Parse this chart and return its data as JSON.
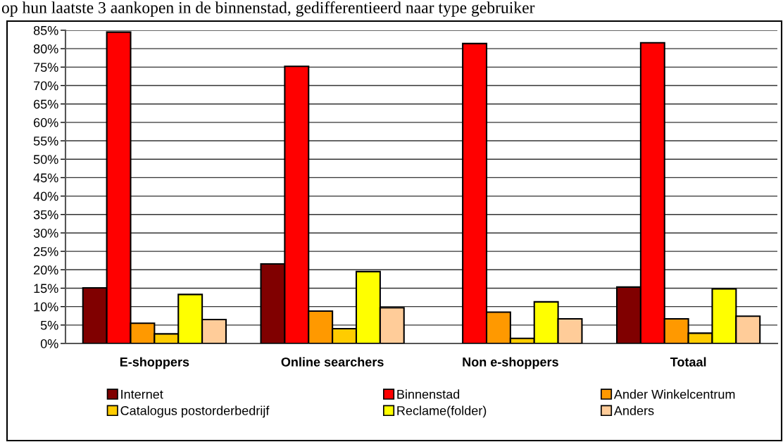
{
  "chart_data": {
    "type": "bar",
    "title": "op hun laatste 3 aankopen in de binnenstad, gedifferentieerd naar type gebruiker",
    "categories": [
      "E-shoppers",
      "Online searchers",
      "Non e-shoppers",
      "Totaal"
    ],
    "series": [
      {
        "name": "Internet",
        "color": "#800000",
        "values": [
          15.1,
          21.6,
          null,
          15.3
        ]
      },
      {
        "name": "Binnenstad",
        "color": "#ff0000",
        "values": [
          84.5,
          75.2,
          81.4,
          81.6
        ]
      },
      {
        "name": "Ander Winkelcentrum",
        "color": "#ff9900",
        "values": [
          5.5,
          8.8,
          8.5,
          6.7
        ]
      },
      {
        "name": "Catalogus postorderbedrijf",
        "color": "#ffcc00",
        "values": [
          2.6,
          4.0,
          1.4,
          2.8
        ]
      },
      {
        "name": "Reclame(folder)",
        "color": "#ffff00",
        "values": [
          13.3,
          19.5,
          11.3,
          14.8
        ]
      },
      {
        "name": "Anders",
        "color": "#ffcc99",
        "values": [
          6.5,
          9.7,
          6.7,
          7.4
        ]
      }
    ],
    "ylim": [
      0,
      85
    ],
    "yticks": [
      {
        "value": 0,
        "label": "0%"
      },
      {
        "value": 5,
        "label": "5%"
      },
      {
        "value": 10,
        "label": "10%"
      },
      {
        "value": 15,
        "label": "15%"
      },
      {
        "value": 20,
        "label": "20%"
      },
      {
        "value": 25,
        "label": "25%"
      },
      {
        "value": 30,
        "label": "30%"
      },
      {
        "value": 35,
        "label": "35%"
      },
      {
        "value": 40,
        "label": "40%"
      },
      {
        "value": 45,
        "label": "45%"
      },
      {
        "value": 50,
        "label": "50%"
      },
      {
        "value": 55,
        "label": "55%"
      },
      {
        "value": 60,
        "label": "60%"
      },
      {
        "value": 65,
        "label": "65%"
      },
      {
        "value": 70,
        "label": "70%"
      },
      {
        "value": 75,
        "label": "75%"
      },
      {
        "value": 80,
        "label": "80%"
      },
      {
        "value": 85,
        "label": "85%"
      }
    ],
    "grid": "y",
    "legend": "bottom"
  }
}
